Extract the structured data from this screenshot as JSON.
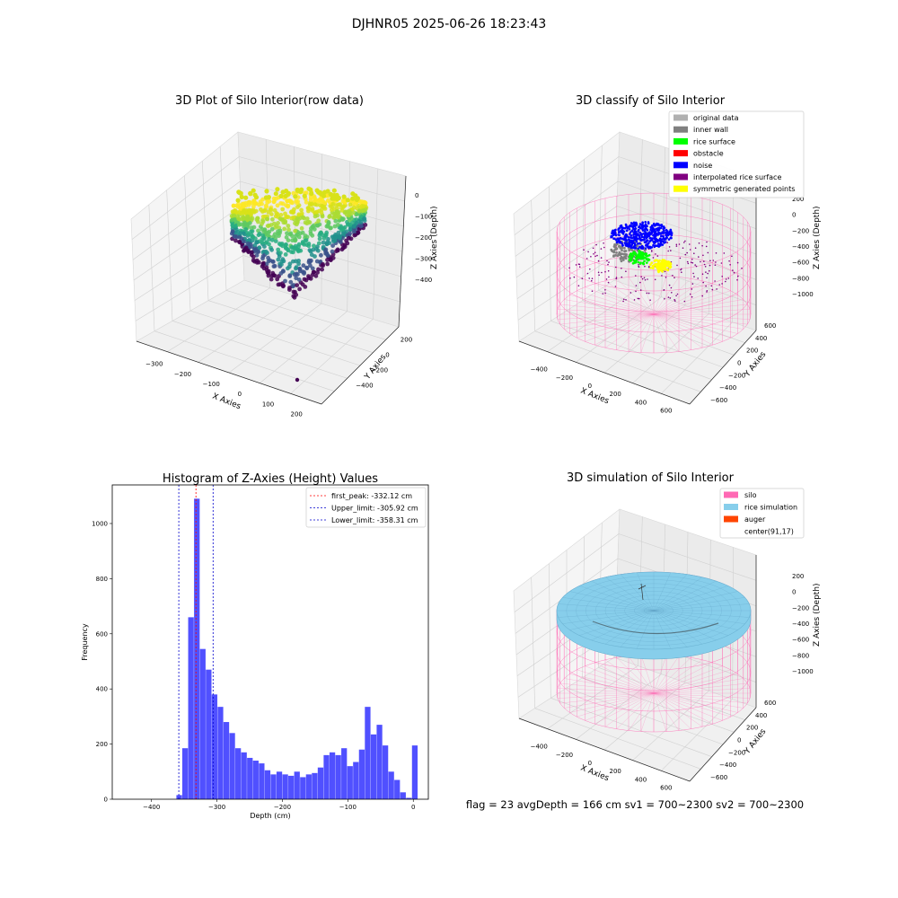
{
  "figure": {
    "suptitle": "DJHNR05 2025-06-26 18:23:43",
    "footer": "flag = 23   avgDepth = 166 cm   sv1 = 700~2300   sv2 = 700~2300"
  },
  "chart_data": [
    {
      "type": "scatter",
      "title": "3D Plot of Silo Interior(row data)",
      "xlabel": "X Axies",
      "ylabel": "Y Axies",
      "zlabel": "Z Axies (Depth)",
      "x_ticks": [
        "−300",
        "−200",
        "−100",
        "0",
        "100",
        "200"
      ],
      "y_ticks": [
        "−400",
        "−200",
        "0",
        "200"
      ],
      "z_ticks": [
        "0",
        "−100",
        "−200",
        "−300",
        "−400"
      ],
      "xlim": [
        -330,
        260
      ],
      "ylim": [
        -450,
        280
      ],
      "zlim": [
        -440,
        10
      ],
      "colormap": "viridis"
    },
    {
      "type": "scatter",
      "title": "3D classify of Silo Interior",
      "xlabel": "X Axies",
      "ylabel": "Y Axies",
      "zlabel": "Z Axies (Depth)",
      "x_ticks": [
        "−400",
        "−200",
        "0",
        "200",
        "400",
        "600"
      ],
      "y_ticks": [
        "−600",
        "−400",
        "−200",
        "0",
        "200",
        "400",
        "600"
      ],
      "z_ticks": [
        "200",
        "0",
        "−200",
        "−400",
        "−600",
        "−800",
        "−1000"
      ],
      "legend": [
        {
          "label": "original data",
          "color": "#b0b0b0"
        },
        {
          "label": "inner wall",
          "color": "#808080"
        },
        {
          "label": "rice surface",
          "color": "#00ff00"
        },
        {
          "label": "obstacle",
          "color": "#ff0000"
        },
        {
          "label": "noise",
          "color": "#0000ff"
        },
        {
          "label": "interpolated rice surface",
          "color": "#800080"
        },
        {
          "label": "symmetric generated points",
          "color": "#ffff00"
        }
      ]
    },
    {
      "type": "bar",
      "title": "Histogram of Z-Axies (Height) Values",
      "xlabel": "Depth (cm)",
      "ylabel": "Frequency",
      "xlim": [
        -460,
        23
      ],
      "ylim": [
        0,
        1140
      ],
      "x_ticks": [
        -400,
        -300,
        -200,
        -100,
        0
      ],
      "y_ticks": [
        0,
        200,
        400,
        600,
        800,
        1000
      ],
      "bin_width": 9,
      "bin_start": -362,
      "values": [
        15,
        185,
        660,
        1090,
        545,
        470,
        380,
        335,
        280,
        240,
        185,
        170,
        150,
        140,
        130,
        105,
        90,
        100,
        90,
        85,
        100,
        80,
        90,
        95,
        115,
        160,
        170,
        160,
        185,
        120,
        135,
        180,
        335,
        235,
        270,
        195,
        100,
        70,
        25,
        5,
        195
      ],
      "bar_color": "#5050ff",
      "vlines": [
        {
          "x": -332.12,
          "color": "#ff0000",
          "label": "first_peak: -332.12 cm"
        },
        {
          "x": -305.92,
          "color": "#0000cc",
          "label": "Upper_limit: -305.92 cm"
        },
        {
          "x": -358.31,
          "color": "#0000cc",
          "label": "Lower_limit: -358.31 cm"
        }
      ],
      "legend_position": "upper right"
    },
    {
      "type": "scatter",
      "title": "3D simulation of Silo Interior",
      "xlabel": "X Axies",
      "ylabel": "Y Axies",
      "zlabel": "Z Axies (Depth)",
      "x_ticks": [
        "−400",
        "−200",
        "0",
        "200",
        "400",
        "600"
      ],
      "y_ticks": [
        "−600",
        "−400",
        "−200",
        "0",
        "200",
        "400",
        "600"
      ],
      "z_ticks": [
        "200",
        "0",
        "−200",
        "−400",
        "−600",
        "−800",
        "−1000"
      ],
      "legend": [
        {
          "label": "silo",
          "color": "#ff69b4"
        },
        {
          "label": "rice simulation",
          "color": "#87ceeb"
        },
        {
          "label": "auger",
          "color": "#ff4500"
        },
        {
          "label": "center(91,17)",
          "color": "#ffffff"
        }
      ]
    }
  ]
}
